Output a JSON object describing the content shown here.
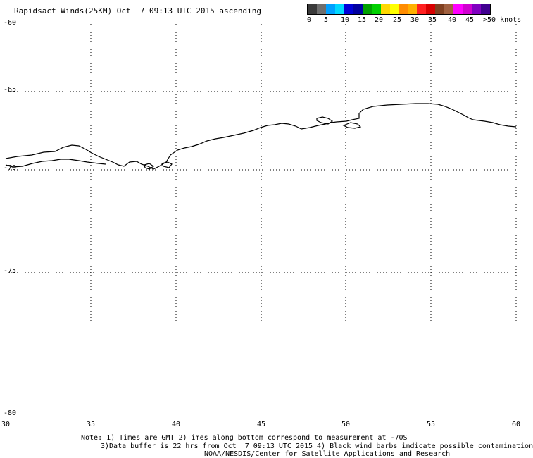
{
  "title": "Rapidsact Winds(25KM) Oct  7 09:13 UTC 2015 ascending",
  "legend": {
    "colors": [
      "#3a3a3a",
      "#6e6e6e",
      "#00a0ff",
      "#00d8ff",
      "#0000d8",
      "#0000a0",
      "#00a000",
      "#00d000",
      "#ffd800",
      "#ffff00",
      "#ff8c00",
      "#ffb000",
      "#ff2020",
      "#d80000",
      "#804020",
      "#a06040",
      "#ff00ff",
      "#d000d0",
      "#8000c0",
      "#400090"
    ],
    "ticks": [
      "0",
      "5",
      "10",
      "15",
      "20",
      "25",
      "30",
      "35",
      "40",
      "45",
      ">50 knots"
    ]
  },
  "map": {
    "lat_labels": [
      "-60",
      "-65",
      "-70",
      "-75",
      "-80"
    ],
    "lon_labels": [
      "30",
      "35",
      "40",
      "45",
      "50",
      "55",
      "60"
    ]
  },
  "notes": [
    "Note: 1) Times are GMT 2)Times along bottom correspond to measurement at -70S",
    "3)Data buffer is 22 hrs from Oct  7 09:13 UTC 2015 4) Black wind barbs indicate possible contamination",
    "NOAA/NESDIS/Center for Satellite Applications and Research"
  ]
}
